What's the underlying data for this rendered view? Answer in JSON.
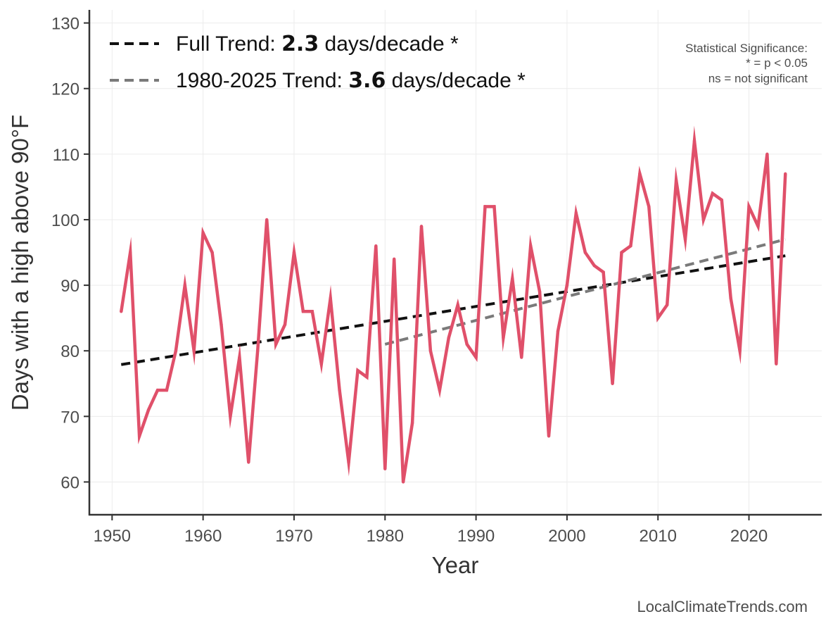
{
  "chart_data": {
    "type": "line",
    "xlabel": "Year",
    "ylabel": "Days with a high above 90°F",
    "xlim": [
      1947.5,
      2028
    ],
    "ylim": [
      55,
      132
    ],
    "x_ticks": [
      1950,
      1960,
      1970,
      1980,
      1990,
      2000,
      2010,
      2020
    ],
    "y_ticks": [
      60,
      70,
      80,
      90,
      100,
      110,
      120,
      130
    ],
    "grid": true,
    "colors": {
      "series": "#e0506a",
      "full_trend": "#111111",
      "recent_trend": "#7a7a7a",
      "axis": "#333333",
      "grid": "#ececec"
    },
    "series": [
      {
        "name": "Days above 90°F",
        "x": [
          1951,
          1952,
          1953,
          1954,
          1955,
          1956,
          1957,
          1958,
          1959,
          1960,
          1961,
          1962,
          1963,
          1964,
          1965,
          1966,
          1967,
          1968,
          1969,
          1970,
          1971,
          1972,
          1973,
          1974,
          1975,
          1976,
          1977,
          1978,
          1979,
          1980,
          1981,
          1982,
          1983,
          1984,
          1985,
          1986,
          1987,
          1988,
          1989,
          1990,
          1991,
          1992,
          1993,
          1994,
          1995,
          1996,
          1997,
          1998,
          1999,
          2000,
          2001,
          2002,
          2003,
          2004,
          2005,
          2006,
          2007,
          2008,
          2009,
          2010,
          2011,
          2012,
          2013,
          2014,
          2015,
          2016,
          2017,
          2018,
          2019,
          2020,
          2021,
          2022,
          2023,
          2024
        ],
        "values": [
          86,
          95,
          67,
          71,
          74,
          74,
          80,
          90,
          80,
          98,
          95,
          84,
          70,
          79,
          63,
          80,
          100,
          81,
          84,
          95,
          86,
          86,
          78,
          88,
          74,
          63,
          77,
          76,
          96,
          62,
          94,
          60,
          69,
          99,
          80,
          74,
          82,
          87,
          81,
          79,
          102,
          102,
          82,
          91,
          79,
          96,
          89,
          67,
          83,
          90,
          101,
          95,
          93,
          92,
          75,
          95,
          96,
          107,
          102,
          85,
          87,
          106,
          97,
          112,
          100,
          104,
          103,
          88,
          80,
          102,
          99,
          110,
          78,
          107
        ]
      }
    ],
    "trends": [
      {
        "name": "Full Trend",
        "x": [
          1951,
          2024
        ],
        "values": [
          77.9,
          94.5
        ],
        "rate": "2.3",
        "style": "dashed"
      },
      {
        "name": "1980-2025 Trend",
        "x": [
          1980,
          2024
        ],
        "values": [
          81.0,
          97.0
        ],
        "rate": "3.6",
        "style": "dashed"
      }
    ],
    "legend": [
      {
        "prefix": "Full Trend: ",
        "bold": "2.3",
        "suffix": " days/decade *"
      },
      {
        "prefix": "1980-2025 Trend: ",
        "bold": "3.6",
        "suffix": " days/decade *"
      }
    ],
    "annotation": {
      "line1": "Statistical Significance:",
      "line2": "* = p < 0.05",
      "line3": "ns = not significant"
    },
    "source": "LocalClimateTrends.com"
  }
}
